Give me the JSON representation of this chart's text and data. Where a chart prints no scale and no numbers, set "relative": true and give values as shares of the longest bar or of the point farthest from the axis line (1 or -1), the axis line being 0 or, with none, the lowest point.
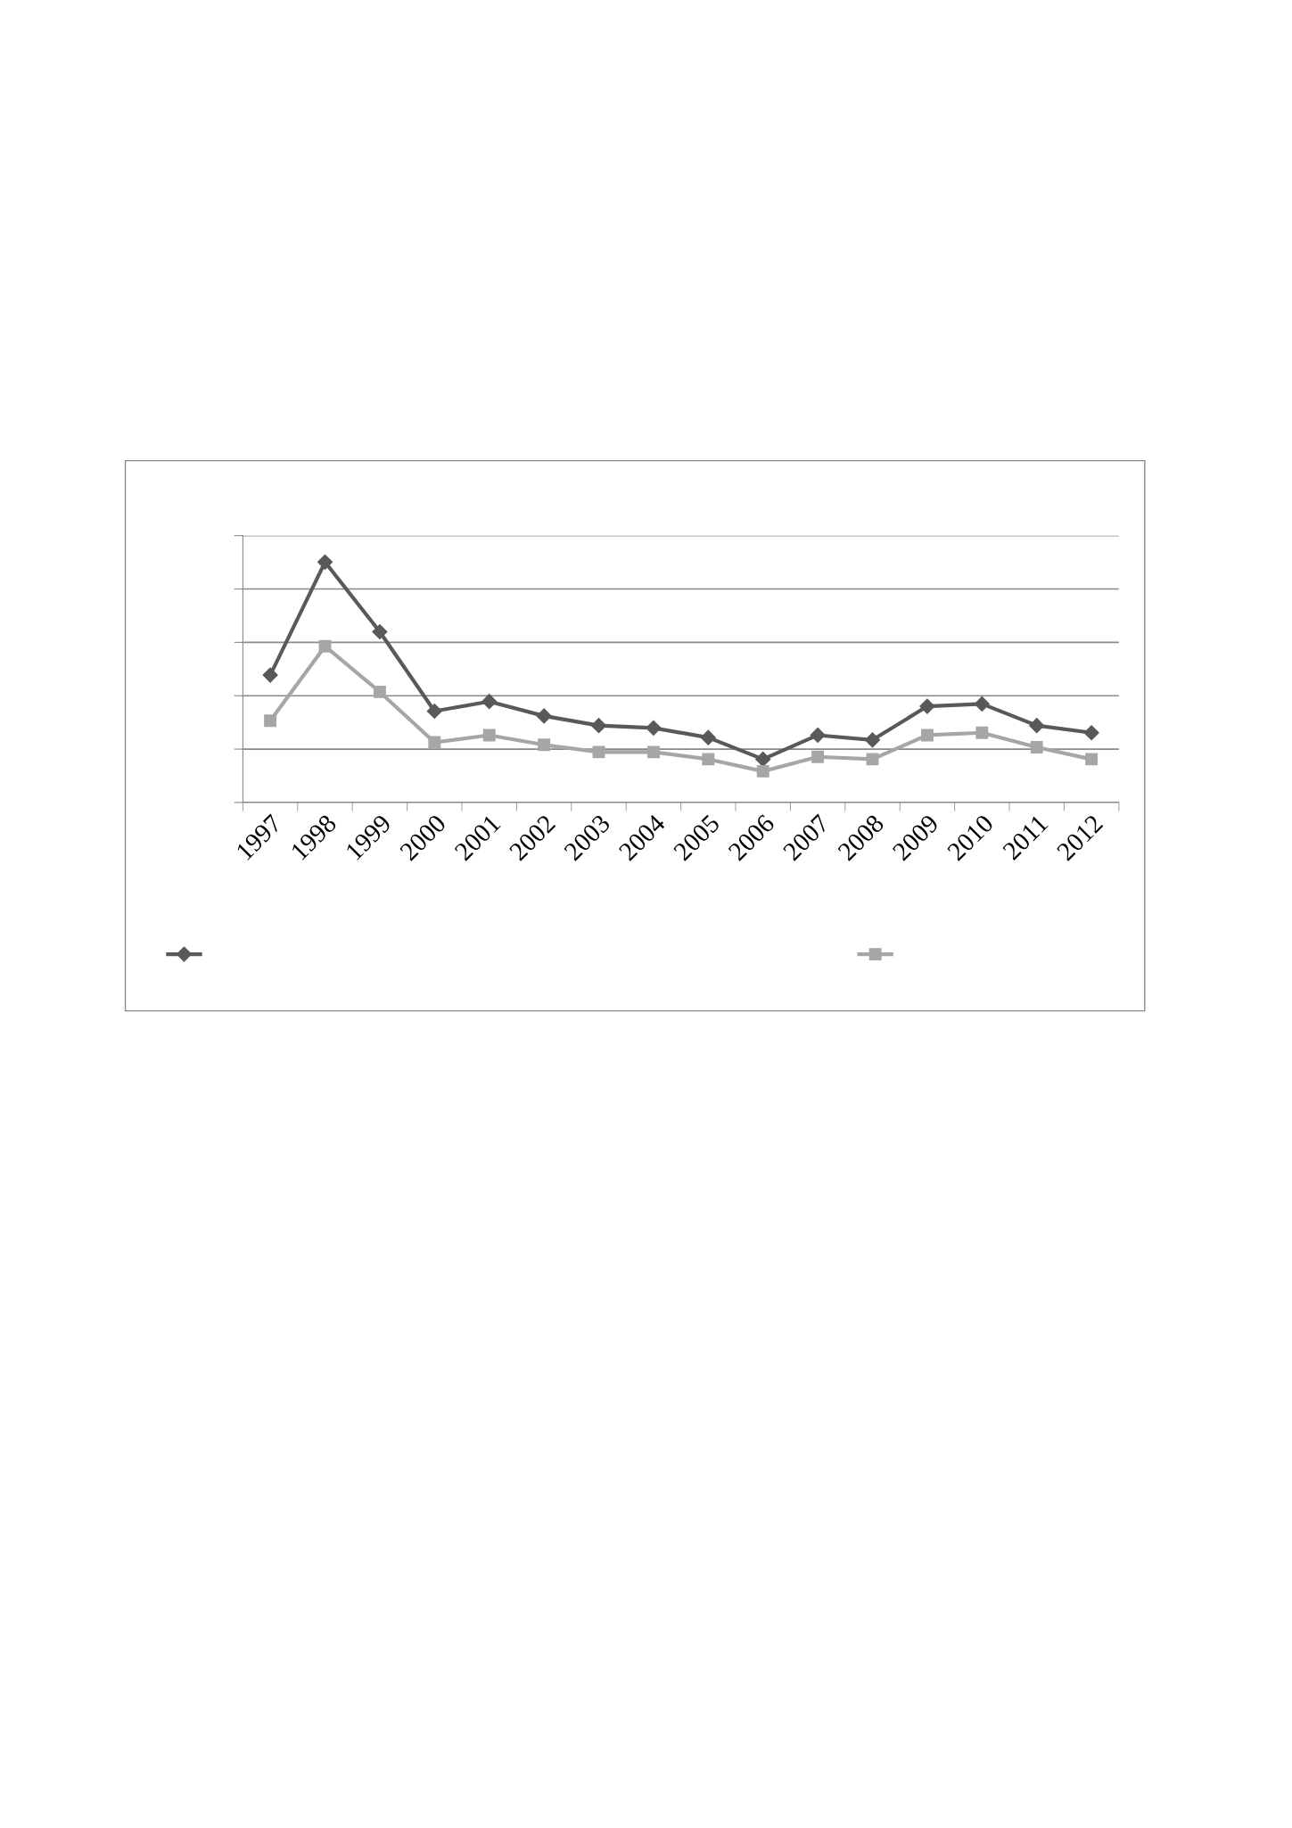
{
  "chart_data": {
    "type": "line",
    "relative": true,
    "categories": [
      "1997",
      "1998",
      "1999",
      "2000",
      "2001",
      "2002",
      "2003",
      "2004",
      "2005",
      "2006",
      "2007",
      "2008",
      "2009",
      "2010",
      "2011",
      "2012"
    ],
    "series": [
      {
        "color": "#595959",
        "marker": "diamond",
        "values": [
          0.53,
          1,
          0.71,
          0.38,
          0.42,
          0.36,
          0.32,
          0.31,
          0.27,
          0.18,
          0.28,
          0.26,
          0.4,
          0.41,
          0.32,
          0.29
        ]
      },
      {
        "color": "#a6a6a6",
        "marker": "square",
        "values": [
          0.34,
          0.65,
          0.46,
          0.25,
          0.28,
          0.24,
          0.21,
          0.21,
          0.18,
          0.13,
          0.19,
          0.18,
          0.28,
          0.29,
          0.23,
          0.18
        ]
      }
    ],
    "grid": "y",
    "line_style": "solid"
  }
}
